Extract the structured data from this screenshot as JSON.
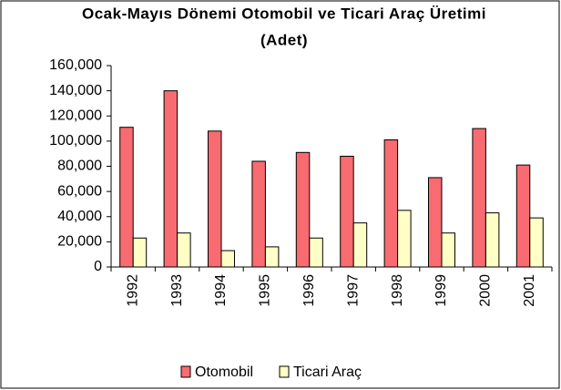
{
  "chart_data": {
    "type": "bar",
    "title": [
      "Ocak-Mayıs Dönemi Otomobil ve Ticari Araç Üretimi",
      "(Adet)"
    ],
    "categories": [
      "1992",
      "1993",
      "1994",
      "1995",
      "1996",
      "1997",
      "1998",
      "1999",
      "2000",
      "2001"
    ],
    "series": [
      {
        "name": "Otomobil",
        "color": "#f86b70",
        "values": [
          111000,
          140000,
          108000,
          84000,
          91000,
          88000,
          101000,
          71000,
          110000,
          81000
        ]
      },
      {
        "name": "Ticari Araç",
        "color": "#ffffc6",
        "values": [
          23000,
          27000,
          13000,
          16000,
          23000,
          35000,
          45000,
          27000,
          43000,
          39000
        ]
      }
    ],
    "ylim": [
      0,
      160000
    ],
    "yticks": [
      0,
      {
        "value": 20000,
        "label": "20,000"
      },
      {
        "value": 40000,
        "label": "40,000"
      },
      {
        "value": 60000,
        "label": "60,000"
      },
      {
        "value": 80000,
        "label": "80,000"
      },
      {
        "value": 100000,
        "label": "100,000"
      },
      {
        "value": 120000,
        "label": "120,000"
      },
      {
        "value": 140000,
        "label": "140,000"
      },
      {
        "value": 160000,
        "label": "160,000"
      }
    ],
    "grid": false,
    "legend": "bottom"
  }
}
